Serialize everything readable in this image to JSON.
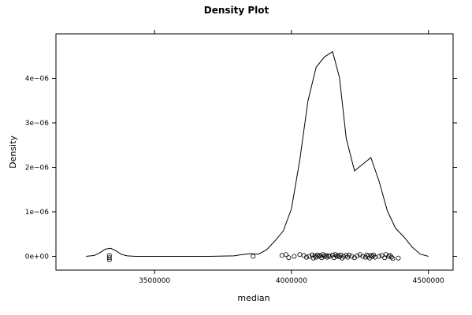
{
  "chart_data": {
    "type": "line",
    "title": "Density Plot",
    "xlabel": "median",
    "ylabel": "Density",
    "xlim": [
      3140000,
      4590000
    ],
    "ylim": [
      -3.1e-07,
      5e-06
    ],
    "x_ticks": [
      {
        "value": 3500000,
        "label": "3500000"
      },
      {
        "value": 4000000,
        "label": "4000000"
      },
      {
        "value": 4500000,
        "label": "4500000"
      }
    ],
    "y_ticks": [
      {
        "value": 0,
        "label": "0e+00"
      },
      {
        "value": 1e-06,
        "label": "1e−06"
      },
      {
        "value": 2e-06,
        "label": "2e−06"
      },
      {
        "value": 3e-06,
        "label": "3e−06"
      },
      {
        "value": 4e-06,
        "label": "4e−06"
      }
    ],
    "grid": false,
    "series": [
      {
        "style": "line",
        "x": [
          3250000,
          3280000,
          3300000,
          3320000,
          3340000,
          3360000,
          3380000,
          3400000,
          3430000,
          3500000,
          3700000,
          3790000,
          3810000,
          3850000,
          3880000,
          3910000,
          3940000,
          3970000,
          4000000,
          4030000,
          4060000,
          4090000,
          4120000,
          4150000,
          4175000,
          4200000,
          4230000,
          4260000,
          4290000,
          4320000,
          4350000,
          4380000,
          4410000,
          4440000,
          4470000,
          4500000
        ],
        "y": [
          0,
          2e-08,
          8e-08,
          1.6e-07,
          1.8e-07,
          1.2e-07,
          4e-08,
          1e-08,
          0,
          0,
          0,
          1e-08,
          3e-08,
          6e-08,
          5e-08,
          1.5e-07,
          3.5e-07,
          5.7e-07,
          1.07e-06,
          2.16e-06,
          3.49e-06,
          4.25e-06,
          4.48e-06,
          4.6e-06,
          4.02e-06,
          2.65e-06,
          1.92e-06,
          2.07e-06,
          2.22e-06,
          1.68e-06,
          1.02e-06,
          6.3e-07,
          4.4e-07,
          2.1e-07,
          5e-08,
          0
        ]
      },
      {
        "style": "points",
        "x": [
          3335000,
          3335000,
          3335000,
          3860000,
          3965000,
          3980000,
          3990000,
          4010000,
          4030000,
          4045000,
          4055000,
          4065000,
          4075000,
          4080000,
          4085000,
          4090000,
          4095000,
          4100000,
          4105000,
          4110000,
          4115000,
          4120000,
          4125000,
          4130000,
          4135000,
          4140000,
          4150000,
          4155000,
          4160000,
          4165000,
          4170000,
          4175000,
          4180000,
          4185000,
          4190000,
          4200000,
          4205000,
          4210000,
          4220000,
          4230000,
          4240000,
          4250000,
          4260000,
          4270000,
          4275000,
          4280000,
          4285000,
          4290000,
          4295000,
          4300000,
          4305000,
          4320000,
          4330000,
          4340000,
          4345000,
          4355000,
          4360000,
          4365000,
          4370000,
          4390000
        ],
        "y": [
          2e-08,
          -3e-08,
          -8e-08,
          0,
          2e-08,
          4e-08,
          -3e-08,
          0,
          4e-08,
          2e-08,
          -2e-08,
          0,
          3e-08,
          -4e-08,
          1e-08,
          -2e-08,
          3e-08,
          0,
          2e-08,
          -3e-08,
          4e-08,
          0,
          2e-08,
          -2e-08,
          1e-08,
          0,
          3e-08,
          -3e-08,
          4e-08,
          0,
          2e-08,
          -1e-08,
          3e-08,
          -4e-08,
          0,
          2e-08,
          -2e-08,
          3e-08,
          0,
          -3e-08,
          1e-08,
          4e-08,
          0,
          -2e-08,
          3e-08,
          0,
          -4e-08,
          2e-08,
          0,
          3e-08,
          -2e-08,
          0,
          2e-08,
          -3e-08,
          4e-08,
          0,
          2e-08,
          -2e-08,
          -5e-08,
          -4e-08
        ]
      }
    ]
  }
}
